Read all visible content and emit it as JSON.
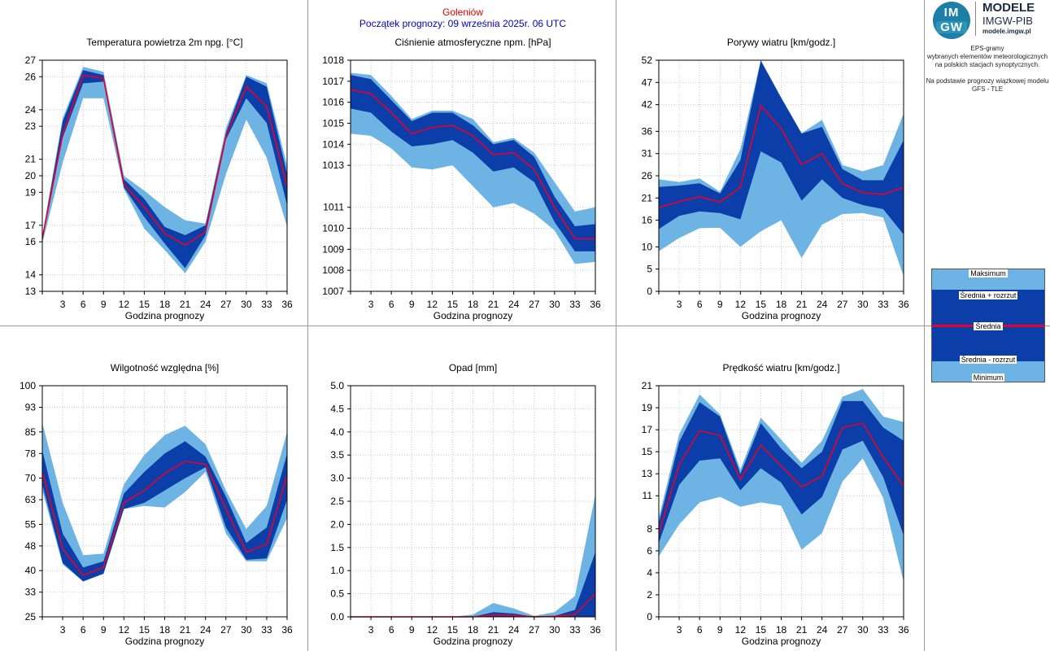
{
  "header": {
    "station": "Goleniów",
    "forecast_start": "Początek prognozy: 09 września 2025r. 06 UTC"
  },
  "logo": {
    "badge_top": "IM",
    "badge_bottom": "GW",
    "title": "MODELE",
    "subtitle": "IMGW-PIB",
    "url": "modele.imgw.pl"
  },
  "description": {
    "line1": "EPS-gramy",
    "line2": "wybranych elementów meteorologicznych",
    "line3": "na polskich stacjach  synoptycznych.",
    "line4": "Na podstawie prognozy wiązkowej modelu",
    "line5": "GFS - TLE"
  },
  "legend": {
    "max": "Maksimum",
    "mean_plus": "Średnia + rozrzut",
    "mean": "Średnia",
    "mean_minus": "Średnia - rozrzut",
    "min": "Minimum"
  },
  "colors": {
    "spread_outer": "#6db3e4",
    "spread_inner": "#0b3ea8",
    "mean_line": "#e8002a",
    "grid": "#c8c8c8",
    "station_text": "#e00000",
    "start_text": "#0000c8"
  },
  "chart_data": [
    {
      "id": "temp",
      "type": "area",
      "title": "Temperatura powietrza 2m npg. [°C]",
      "xlabel": "Godzina prognozy",
      "x": [
        0,
        3,
        6,
        9,
        12,
        15,
        18,
        21,
        24,
        27,
        30,
        33,
        36
      ],
      "xticks": [
        "3",
        "6",
        "9",
        "12",
        "15",
        "18",
        "21",
        "24",
        "27",
        "30",
        "33",
        "36"
      ],
      "xlim": [
        0,
        36
      ],
      "ylim": [
        13,
        27
      ],
      "yticks": [
        13,
        14,
        16,
        17,
        19,
        20,
        21,
        23,
        24,
        26,
        27
      ],
      "ytick_labels": [
        "13",
        "14",
        "16",
        "17",
        "19",
        "20",
        "21",
        "23",
        "24",
        "26",
        "27"
      ],
      "series": [
        {
          "name": "Maksimum",
          "values": [
            16.4,
            23.5,
            26.6,
            26.3,
            20.0,
            19.1,
            18.1,
            17.3,
            17.1,
            22.9,
            26.1,
            25.6,
            20.6
          ]
        },
        {
          "name": "Średnia + rozrzut",
          "values": [
            16.3,
            23.3,
            26.4,
            26.1,
            19.8,
            18.6,
            16.9,
            16.4,
            17.0,
            22.6,
            26.0,
            25.4,
            20.1
          ]
        },
        {
          "name": "Średnia",
          "values": [
            16.2,
            22.5,
            26.1,
            25.9,
            19.5,
            18.1,
            16.5,
            15.8,
            16.6,
            22.4,
            25.4,
            24.2,
            19.3
          ]
        },
        {
          "name": "Średnia - rozrzut",
          "values": [
            16.1,
            22.3,
            25.6,
            25.7,
            19.3,
            17.5,
            15.9,
            14.4,
            16.4,
            22.2,
            24.7,
            23.2,
            18.2
          ]
        },
        {
          "name": "Minimum",
          "values": [
            15.9,
            20.8,
            24.7,
            24.7,
            19.2,
            16.8,
            15.5,
            14.1,
            16.0,
            20.1,
            23.4,
            21.1,
            16.9
          ]
        }
      ]
    },
    {
      "id": "press",
      "type": "area",
      "title": "Ciśnienie atmosferyczne npm. [hPa]",
      "xlabel": "Godzina prognozy",
      "x": [
        0,
        3,
        6,
        9,
        12,
        15,
        18,
        21,
        24,
        27,
        30,
        33,
        36
      ],
      "xticks": [
        "3",
        "6",
        "9",
        "12",
        "15",
        "18",
        "21",
        "24",
        "27",
        "30",
        "33",
        "36"
      ],
      "xlim": [
        0,
        36
      ],
      "ylim": [
        1007,
        1018
      ],
      "yticks": [
        1007,
        1008,
        1009,
        1010,
        1011,
        1013,
        1014,
        1015,
        1016,
        1017,
        1018
      ],
      "ytick_labels": [
        "1007",
        "1008",
        "1009",
        "1010",
        "1011",
        "1013",
        "1014",
        "1015",
        "1016",
        "1017",
        "1018"
      ],
      "series": [
        {
          "name": "Maksimum",
          "values": [
            1017.4,
            1017.3,
            1016.3,
            1015.2,
            1015.6,
            1015.6,
            1015.2,
            1014.1,
            1014.3,
            1013.6,
            1012.2,
            1010.8,
            1011.0
          ]
        },
        {
          "name": "Średnia + rozrzut",
          "values": [
            1017.3,
            1017.1,
            1016.1,
            1015.1,
            1015.5,
            1015.5,
            1014.9,
            1014.0,
            1014.2,
            1013.4,
            1011.5,
            1010.1,
            1010.2
          ]
        },
        {
          "name": "Średnia",
          "values": [
            1016.6,
            1016.4,
            1015.5,
            1014.5,
            1014.8,
            1014.9,
            1014.4,
            1013.5,
            1013.6,
            1012.8,
            1011.0,
            1009.5,
            1009.5
          ]
        },
        {
          "name": "Średnia - rozrzut",
          "values": [
            1015.7,
            1015.5,
            1014.6,
            1013.9,
            1014.0,
            1014.2,
            1013.6,
            1012.7,
            1012.9,
            1012.2,
            1010.3,
            1008.9,
            1008.9
          ]
        },
        {
          "name": "Minimum",
          "values": [
            1014.5,
            1014.4,
            1013.8,
            1012.9,
            1012.8,
            1013.0,
            1012.0,
            1011.0,
            1011.2,
            1010.7,
            1009.9,
            1008.3,
            1008.4
          ]
        }
      ]
    },
    {
      "id": "gust",
      "type": "area",
      "title": "Porywy wiatru [km/godz.]",
      "xlabel": "Godzina prognozy",
      "x": [
        0,
        3,
        6,
        9,
        12,
        15,
        18,
        21,
        24,
        27,
        30,
        33,
        36
      ],
      "xticks": [
        "3",
        "6",
        "9",
        "12",
        "15",
        "18",
        "21",
        "24",
        "27",
        "30",
        "33",
        "36"
      ],
      "xlim": [
        0,
        36
      ],
      "ylim": [
        0,
        52
      ],
      "yticks": [
        0,
        5,
        10,
        16,
        21,
        26,
        31,
        36,
        42,
        47,
        52
      ],
      "ytick_labels": [
        "0",
        "5",
        "10",
        "16",
        "21",
        "26",
        "31",
        "36",
        "42",
        "47",
        "52"
      ],
      "series": [
        {
          "name": "Maksimum",
          "values": [
            25.2,
            24.6,
            25.4,
            22.4,
            32.0,
            52.0,
            43.6,
            35.6,
            38.6,
            28.4,
            27.0,
            28.4,
            40.0
          ]
        },
        {
          "name": "Średnia + rozrzut",
          "values": [
            23.5,
            23.8,
            24.3,
            22.0,
            29.5,
            51.9,
            43.5,
            35.5,
            37.0,
            27.5,
            25.0,
            25.0,
            34.0
          ]
        },
        {
          "name": "Średnia",
          "values": [
            18.8,
            20.2,
            21.3,
            20.1,
            23.4,
            41.8,
            36.6,
            28.5,
            31.0,
            24.2,
            22.2,
            21.8,
            23.4
          ]
        },
        {
          "name": "Średnia - rozrzut",
          "values": [
            14.0,
            17.0,
            18.0,
            17.6,
            16.2,
            31.5,
            29.0,
            20.4,
            25.2,
            21.0,
            19.4,
            18.5,
            12.8
          ]
        },
        {
          "name": "Minimum",
          "values": [
            9.0,
            12.0,
            14.2,
            14.3,
            10.0,
            13.5,
            16.0,
            7.5,
            15.0,
            17.4,
            17.6,
            16.6,
            3.4
          ]
        }
      ]
    },
    {
      "id": "humid",
      "type": "area",
      "title": "Wilgotność względna [%]",
      "xlabel": "Godzina prognozy",
      "x": [
        0,
        3,
        6,
        9,
        12,
        15,
        18,
        21,
        24,
        27,
        30,
        33,
        36
      ],
      "xticks": [
        "3",
        "6",
        "9",
        "12",
        "15",
        "18",
        "21",
        "24",
        "27",
        "30",
        "33",
        "36"
      ],
      "xlim": [
        0,
        36
      ],
      "ylim": [
        25,
        100
      ],
      "yticks": [
        25,
        33,
        40,
        48,
        55,
        63,
        70,
        78,
        85,
        93,
        100
      ],
      "ytick_labels": [
        "25",
        "33",
        "40",
        "48",
        "55",
        "63",
        "70",
        "78",
        "85",
        "93",
        "100"
      ],
      "series": [
        {
          "name": "Maksimum",
          "values": [
            88.0,
            62.0,
            45.0,
            45.5,
            68.0,
            77.5,
            84.0,
            87.0,
            81.0,
            66.0,
            53.5,
            61.0,
            85.0
          ]
        },
        {
          "name": "Średnia + rozrzut",
          "values": [
            79.0,
            52.0,
            41.0,
            43.0,
            65.0,
            72.0,
            78.0,
            82.0,
            77.0,
            64.0,
            49.0,
            54.0,
            78.0
          ]
        },
        {
          "name": "Średnia",
          "values": [
            72.0,
            47.0,
            38.5,
            41.0,
            62.0,
            66.0,
            71.5,
            75.5,
            74.5,
            60.0,
            46.0,
            48.5,
            71.0
          ]
        },
        {
          "name": "Średnia - rozrzut",
          "values": [
            68.0,
            42.5,
            36.5,
            39.0,
            60.0,
            62.0,
            66.0,
            70.0,
            73.5,
            54.0,
            43.5,
            44.0,
            63.0
          ]
        },
        {
          "name": "Minimum",
          "values": [
            66.0,
            42.0,
            36.5,
            39.0,
            60.0,
            61.0,
            60.5,
            65.5,
            72.0,
            52.0,
            43.0,
            43.0,
            57.0
          ]
        }
      ]
    },
    {
      "id": "precip",
      "type": "area",
      "title": "Opad [mm]",
      "xlabel": "Godzina prognozy",
      "x": [
        0,
        3,
        6,
        9,
        12,
        15,
        18,
        21,
        24,
        27,
        30,
        33,
        36
      ],
      "xticks": [
        "3",
        "6",
        "9",
        "12",
        "15",
        "18",
        "21",
        "24",
        "27",
        "30",
        "33",
        "36"
      ],
      "xlim": [
        0,
        36
      ],
      "ylim": [
        0,
        5
      ],
      "yticks": [
        0,
        0.5,
        1,
        1.5,
        2,
        2.5,
        3,
        3.5,
        4,
        4.5,
        5
      ],
      "ytick_labels": [
        "0.0",
        "0.5",
        "1.0",
        "1.5",
        "2.0",
        "2.5",
        "3.0",
        "3.5",
        "4.0",
        "4.5",
        "5.0"
      ],
      "series": [
        {
          "name": "Maksimum",
          "values": [
            0,
            0,
            0,
            0,
            0,
            0,
            0.05,
            0.3,
            0.18,
            0.02,
            0.1,
            0.45,
            2.65
          ]
        },
        {
          "name": "Średnia + rozrzut",
          "values": [
            0,
            0,
            0,
            0,
            0,
            0,
            0,
            0.1,
            0.07,
            0,
            0.02,
            0.15,
            1.4
          ]
        },
        {
          "name": "Średnia",
          "values": [
            0,
            0,
            0,
            0,
            0,
            0,
            0,
            0.04,
            0.03,
            0,
            0.01,
            0.05,
            0.5
          ]
        },
        {
          "name": "Średnia - rozrzut",
          "values": [
            0,
            0,
            0,
            0,
            0,
            0,
            0,
            0,
            0,
            0,
            0,
            0,
            0
          ]
        },
        {
          "name": "Minimum",
          "values": [
            0,
            0,
            0,
            0,
            0,
            0,
            0,
            0,
            0,
            0,
            0,
            0,
            0
          ]
        }
      ]
    },
    {
      "id": "wind",
      "type": "area",
      "title": "Prędkość wiatru [km/godz.]",
      "xlabel": "Godzina prognozy",
      "x": [
        0,
        3,
        6,
        9,
        12,
        15,
        18,
        21,
        24,
        27,
        30,
        33,
        36
      ],
      "xticks": [
        "3",
        "6",
        "9",
        "12",
        "15",
        "18",
        "21",
        "24",
        "27",
        "30",
        "33",
        "36"
      ],
      "xlim": [
        0,
        36
      ],
      "ylim": [
        0,
        21
      ],
      "yticks": [
        0,
        2,
        4,
        6,
        8,
        11,
        13,
        15,
        17,
        19,
        21
      ],
      "ytick_labels": [
        "0",
        "2",
        "4",
        "6",
        "8",
        "11",
        "13",
        "15",
        "17",
        "19",
        "21"
      ],
      "series": [
        {
          "name": "Maksimum",
          "values": [
            9.0,
            16.6,
            20.2,
            18.4,
            13.4,
            18.1,
            16.1,
            14.0,
            16.0,
            20.0,
            20.7,
            18.2,
            17.7
          ]
        },
        {
          "name": "Średnia + rozrzut",
          "values": [
            8.5,
            15.9,
            19.5,
            18.2,
            13.0,
            17.6,
            15.3,
            13.5,
            15.0,
            19.6,
            19.6,
            17.2,
            16.0
          ]
        },
        {
          "name": "Średnia",
          "values": [
            7.6,
            13.8,
            16.9,
            16.5,
            12.5,
            15.6,
            13.7,
            11.8,
            12.8,
            17.2,
            17.6,
            14.5,
            11.9
          ]
        },
        {
          "name": "Średnia - rozrzut",
          "values": [
            6.7,
            12.0,
            14.2,
            14.4,
            11.5,
            13.5,
            12.2,
            9.3,
            10.9,
            15.2,
            16.0,
            12.7,
            7.4
          ]
        },
        {
          "name": "Minimum",
          "values": [
            5.5,
            8.4,
            10.4,
            10.9,
            10.0,
            10.4,
            10.1,
            6.1,
            7.6,
            12.3,
            14.4,
            10.8,
            3.2
          ]
        }
      ]
    }
  ]
}
